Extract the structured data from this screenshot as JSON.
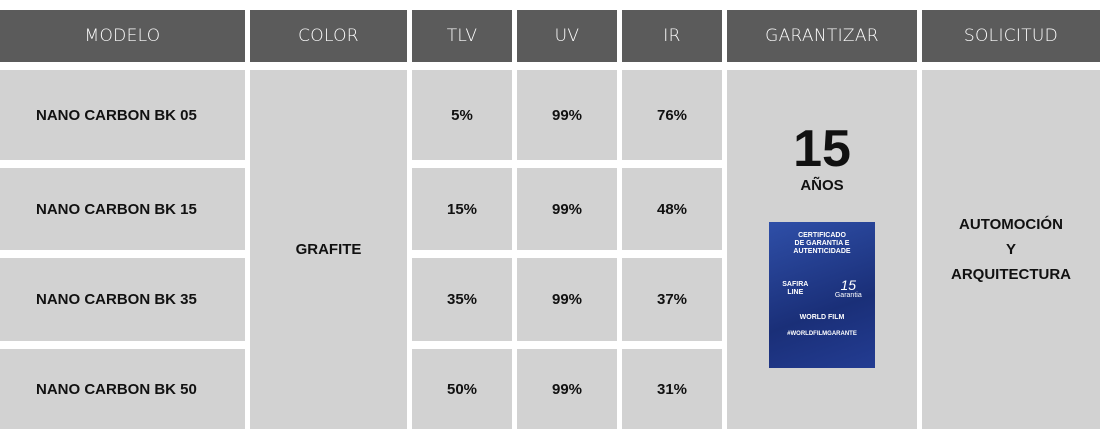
{
  "table": {
    "header": [
      "MODELO",
      "COLOR",
      "TLV",
      "UV",
      "IR",
      "GARANTIZAR",
      "SOLICITUD"
    ],
    "rows": [
      [
        "NANO CARBON BK 05",
        "5%",
        "99%",
        "76%"
      ],
      [
        "NANO CARBON BK 15",
        "15%",
        "99%",
        "48%"
      ],
      [
        "NANO CARBON BK 35",
        "35%",
        "99%",
        "37%"
      ],
      [
        "NANO CARBON BK 50",
        "50%",
        "99%",
        "31%"
      ]
    ],
    "color": "GRAFITE",
    "warranty": {
      "years": "15",
      "unit": "AÑOS",
      "certificate": {
        "title": [
          "CERTIFICADO",
          "DE GARANTIA E",
          "AUTENTICIDADE"
        ],
        "brand": [
          "SAFIRA",
          "LINE"
        ],
        "badge": "15",
        "badge_text": "Garantia",
        "maker": "WORLD FILM",
        "hashtag": "#WORLDFILMGARANTE"
      }
    },
    "application": [
      "AUTOMOCIÓN",
      "Y",
      "ARQUITECTURA"
    ]
  }
}
